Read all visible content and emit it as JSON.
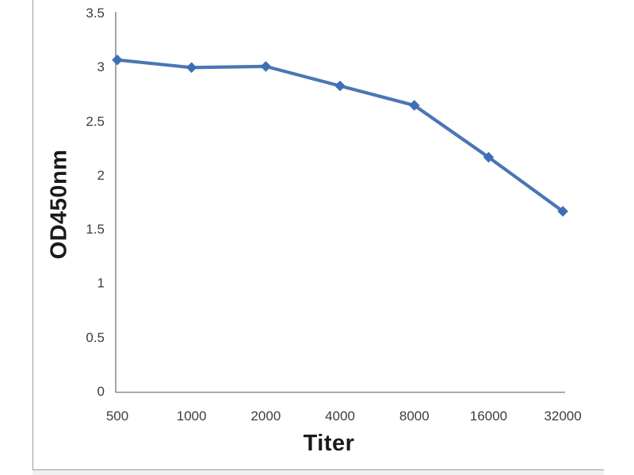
{
  "chart_data": {
    "type": "line",
    "title": "",
    "xlabel": "Titer",
    "ylabel": "OD450nm",
    "categories": [
      "500",
      "1000",
      "2000",
      "4000",
      "8000",
      "16000",
      "32000"
    ],
    "series": [
      {
        "name": "OD450nm",
        "values": [
          3.07,
          3.0,
          3.01,
          2.83,
          2.65,
          2.17,
          1.67
        ]
      }
    ],
    "ylim": [
      0,
      3.5
    ],
    "y_ticks": [
      0,
      0.5,
      1,
      1.5,
      2,
      2.5,
      3,
      3.5
    ],
    "y_tick_labels": [
      "0",
      "0.5",
      "1",
      "1.5",
      "2",
      "2.5",
      "3",
      "3.5"
    ],
    "grid": false,
    "legend": "none",
    "marker": "diamond",
    "colors": {
      "line": "#4a76b4",
      "marker": "#3e6fb6",
      "axis": "#8e8e8e",
      "tick_text": "#3d3d3d",
      "axis_title_text": "#1a1a1a"
    }
  }
}
